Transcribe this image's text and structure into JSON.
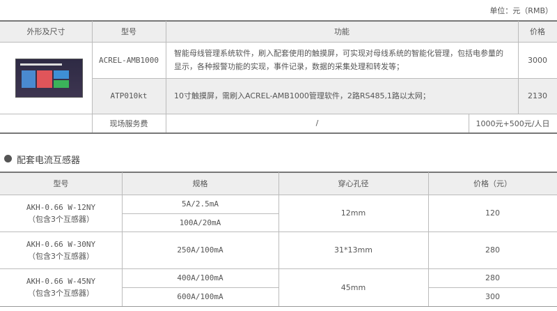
{
  "unit": "单位：元（RMB）",
  "table1": {
    "headers": [
      "外形及尺寸",
      "型号",
      "功能",
      "价格"
    ],
    "rows": [
      {
        "model": "ACREL-AMB1000",
        "function": "智能母线管理系统软件，刷入配套使用的触摸屏，可实现对母线系统的智能化管理，包括电参量的显示，各种报警功能的实现，事件记录，数据的采集处理和转发等；",
        "price": "3000"
      },
      {
        "model": "ATP010kt",
        "function": "10寸触摸屏，需刷入ACREL-AMB1000管理软件，2路RS485,1路以太网；",
        "price": "2130"
      }
    ],
    "service": {
      "label": "现场服务费",
      "function": "/",
      "price": "1000元+500元/人日"
    }
  },
  "section_title": "配套电流互感器",
  "table2": {
    "headers": [
      "型号",
      "规格",
      "穿心孔径",
      "价格（元）"
    ],
    "groups": [
      {
        "model": "AKH-0.66 W-12NY",
        "note": "（包含3个互感器）",
        "specs": [
          "5A/2.5mA",
          "100A/20mA"
        ],
        "bore": "12mm",
        "prices": [
          "120"
        ]
      },
      {
        "model": "AKH-0.66 W-30NY",
        "note": "（包含3个互感器）",
        "specs": [
          "250A/100mA"
        ],
        "bore": "31*13mm",
        "prices": [
          "280"
        ]
      },
      {
        "model": "AKH-0.66 W-45NY",
        "note": "（包含3个互感器）",
        "specs": [
          "400A/100mA",
          "600A/100mA"
        ],
        "bore": "45mm",
        "prices": [
          "280",
          "300"
        ]
      }
    ]
  }
}
